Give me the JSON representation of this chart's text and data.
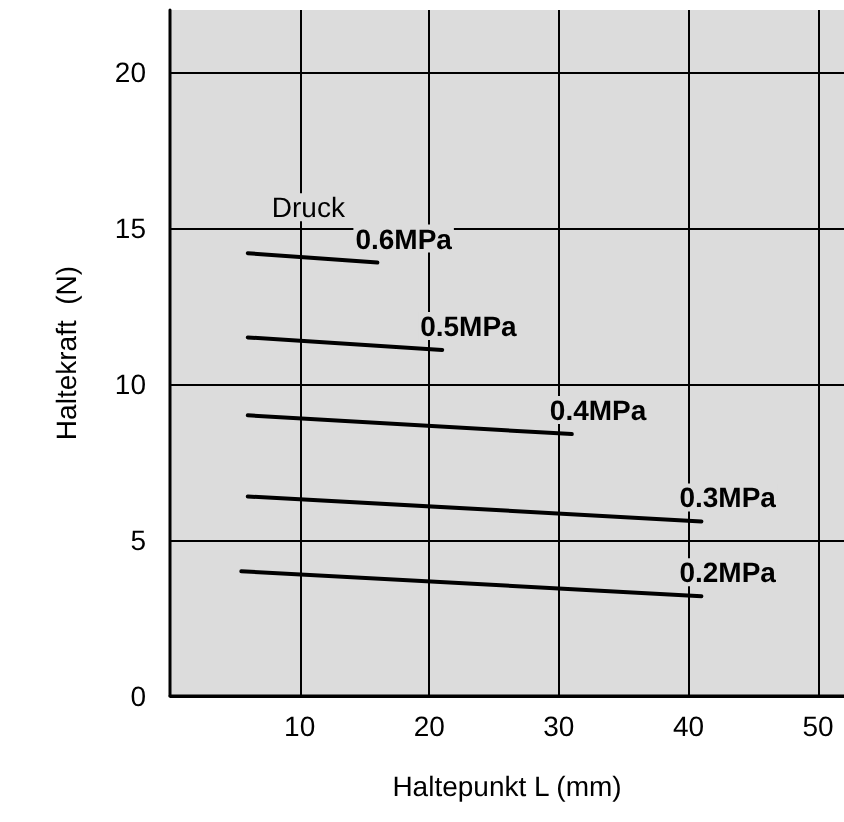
{
  "chart_data": {
    "type": "line",
    "xlabel": "Haltepunkt L (mm)",
    "ylabel": "Haltekraft  (N)",
    "legend_title": "Druck",
    "xlim": [
      0,
      52
    ],
    "xticks": [
      10,
      20,
      30,
      40,
      50
    ],
    "ylim": [
      0,
      22
    ],
    "yticks": [
      0,
      5,
      10,
      15,
      20
    ],
    "grid": true,
    "legend": false,
    "marker": "none",
    "line_style": "solid",
    "series": [
      {
        "name": "0.6MPa",
        "color": "#000000",
        "x": [
          6,
          16
        ],
        "values": [
          14.2,
          13.9
        ]
      },
      {
        "name": "0.5MPa",
        "color": "#000000",
        "x": [
          6,
          21
        ],
        "values": [
          11.5,
          11.1
        ]
      },
      {
        "name": "0.4MPa",
        "color": "#000000",
        "x": [
          6,
          31
        ],
        "values": [
          9.0,
          8.4
        ]
      },
      {
        "name": "0.3MPa",
        "color": "#000000",
        "x": [
          6,
          41
        ],
        "values": [
          6.4,
          5.6
        ]
      },
      {
        "name": "0.2MPa",
        "color": "#000000",
        "x": [
          5.5,
          41
        ],
        "values": [
          4.0,
          3.2
        ]
      }
    ]
  }
}
